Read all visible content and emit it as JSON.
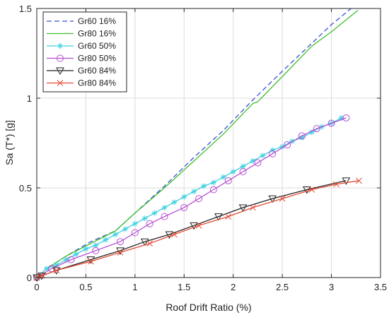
{
  "chart_data": {
    "type": "line",
    "xlabel": "Roof Drift Ratio (%)",
    "ylabel": "Sa (T*) [g]",
    "xlim": [
      0,
      3.5
    ],
    "ylim": [
      0,
      1.5
    ],
    "xticks": [
      0,
      0.5,
      1,
      1.5,
      2,
      2.5,
      3,
      3.5
    ],
    "xtick_labels": [
      "0",
      "0.5",
      "1",
      "1.5",
      "2",
      "2.5",
      "3",
      "3.5"
    ],
    "yticks": [
      0,
      0.5,
      1,
      1.5
    ],
    "ytick_labels": [
      "0",
      "0.5",
      "1",
      "1.5"
    ],
    "grid": true,
    "legend_position": "top-left",
    "series": [
      {
        "name": "Gr60 16%",
        "color": "#3c4fd6",
        "dash": "dashed",
        "marker": "none",
        "x": [
          0,
          0.1,
          0.3,
          0.55,
          0.8,
          1.0,
          1.3,
          1.6,
          1.9,
          2.2,
          2.5,
          2.75,
          3.0,
          3.2
        ],
        "y": [
          0,
          0.05,
          0.12,
          0.2,
          0.26,
          0.36,
          0.51,
          0.67,
          0.82,
          0.99,
          1.15,
          1.28,
          1.41,
          1.5
        ]
      },
      {
        "name": "Gr80 16%",
        "color": "#3fbf2f",
        "dash": "solid",
        "marker": "none",
        "x": [
          0,
          0.1,
          0.3,
          0.55,
          0.8,
          1.0,
          1.3,
          1.6,
          1.9,
          2.2,
          2.25,
          2.5,
          2.8,
          3.0,
          3.27
        ],
        "y": [
          0,
          0.05,
          0.12,
          0.19,
          0.26,
          0.36,
          0.5,
          0.65,
          0.8,
          0.97,
          0.98,
          1.12,
          1.29,
          1.37,
          1.49
        ]
      },
      {
        "name": "Gr60 50%",
        "color": "#3fd0e0",
        "dash": "solid",
        "marker": "asterisk",
        "x": [
          0,
          0.1,
          0.2,
          0.3,
          0.4,
          0.5,
          0.6,
          0.7,
          0.8,
          0.9,
          1.0,
          1.1,
          1.2,
          1.3,
          1.4,
          1.5,
          1.6,
          1.7,
          1.8,
          1.9,
          2.0,
          2.1,
          2.2,
          2.3,
          2.4,
          2.5,
          2.6,
          2.7,
          2.8,
          2.9,
          3.0,
          3.1
        ],
        "y": [
          0,
          0.05,
          0.07,
          0.1,
          0.13,
          0.16,
          0.18,
          0.21,
          0.24,
          0.27,
          0.3,
          0.33,
          0.36,
          0.39,
          0.42,
          0.45,
          0.48,
          0.51,
          0.53,
          0.56,
          0.59,
          0.62,
          0.65,
          0.68,
          0.71,
          0.73,
          0.76,
          0.78,
          0.81,
          0.84,
          0.86,
          0.89
        ]
      },
      {
        "name": "Gr80 50%",
        "color": "#b64fd3",
        "dash": "solid",
        "marker": "circle",
        "x": [
          0,
          0.15,
          0.35,
          0.6,
          0.85,
          1.0,
          1.15,
          1.3,
          1.5,
          1.65,
          1.8,
          1.95,
          2.1,
          2.25,
          2.4,
          2.55,
          2.7,
          2.85,
          3.0,
          3.15
        ],
        "y": [
          0,
          0.05,
          0.1,
          0.15,
          0.2,
          0.25,
          0.3,
          0.34,
          0.39,
          0.44,
          0.49,
          0.54,
          0.59,
          0.64,
          0.69,
          0.74,
          0.79,
          0.83,
          0.86,
          0.89
        ]
      },
      {
        "name": "Gr60 84%",
        "color": "#222222",
        "dash": "solid",
        "marker": "triangle-down",
        "x": [
          0,
          0.05,
          0.2,
          0.55,
          0.85,
          1.1,
          1.35,
          1.6,
          1.85,
          2.1,
          2.4,
          2.75,
          3.15
        ],
        "y": [
          0,
          0.01,
          0.04,
          0.1,
          0.15,
          0.2,
          0.24,
          0.29,
          0.34,
          0.39,
          0.44,
          0.49,
          0.54
        ]
      },
      {
        "name": "Gr80 84%",
        "color": "#e24a33",
        "dash": "solid",
        "marker": "x",
        "x": [
          0,
          0.05,
          0.2,
          0.55,
          0.85,
          1.15,
          1.4,
          1.65,
          1.95,
          2.2,
          2.5,
          2.8,
          3.05,
          3.28
        ],
        "y": [
          0,
          0.01,
          0.04,
          0.09,
          0.14,
          0.19,
          0.24,
          0.29,
          0.34,
          0.39,
          0.44,
          0.49,
          0.52,
          0.54
        ]
      }
    ]
  }
}
